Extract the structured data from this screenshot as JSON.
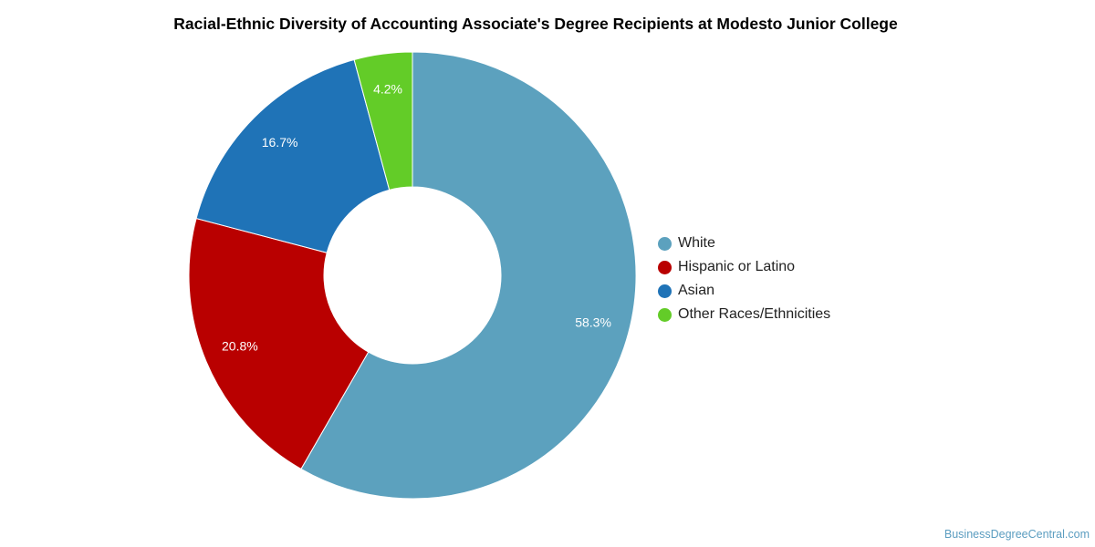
{
  "chart_data": {
    "type": "pie",
    "variant": "donut",
    "title": "Racial-Ethnic Diversity of Accounting Associate's Degree Recipients at Modesto Junior College",
    "categories": [
      "White",
      "Hispanic or Latino",
      "Asian",
      "Other Races/Ethnicities"
    ],
    "values": [
      58.3,
      20.8,
      16.7,
      4.2
    ],
    "labels": [
      "58.3%",
      "20.8%",
      "16.7%",
      "4.2%"
    ],
    "colors": [
      "#5ca1be",
      "#b90000",
      "#1f73b7",
      "#63cc28"
    ],
    "legend_position": "right"
  },
  "footer": {
    "source": "BusinessDegreeCentral.com"
  }
}
